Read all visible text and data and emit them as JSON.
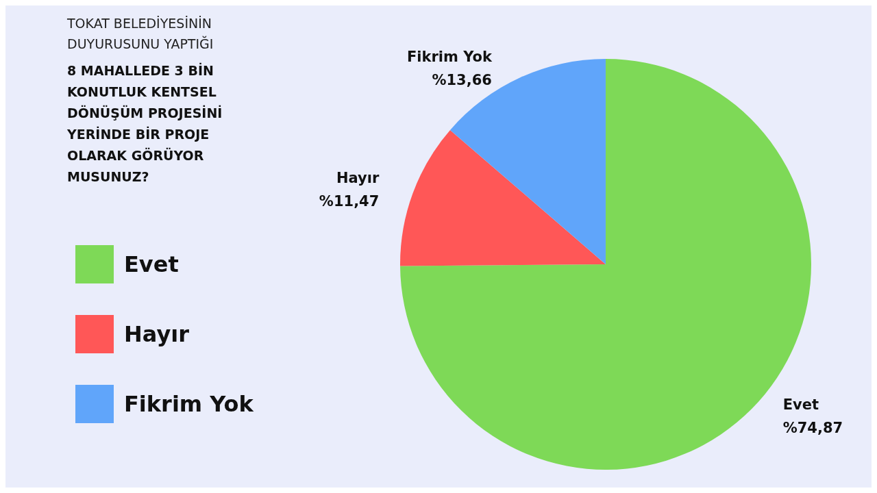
{
  "chart_data": {
    "type": "pie",
    "title": "TOKAT BELEDİYESİNİN DUYURUSUNU YAPTIĞI",
    "subtitle": "8 MAHALLEDE 3 BİN KONUTLUK KENTSEL DÖNÜŞÜM PROJESİNİ YERİNDE BİR PROJE OLARAK GÖRÜYOR MUSUNUZ?",
    "categories": [
      "Evet",
      "Hayır",
      "Fikrim Yok"
    ],
    "values": [
      74.87,
      11.47,
      13.66
    ],
    "colors": [
      "#7ed957",
      "#ff5757",
      "#60a5fa"
    ],
    "value_labels": [
      "%74,87",
      "%11,47",
      "%13,66"
    ],
    "legend": "left"
  }
}
